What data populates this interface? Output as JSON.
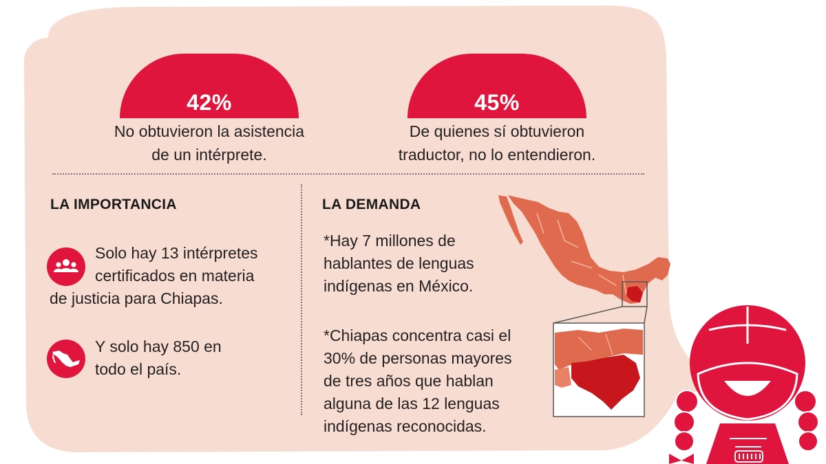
{
  "colors": {
    "background_bubble": "#f7dcd1",
    "accent_red": "#e0153d",
    "map_orange": "#e06a4e",
    "chiapas_red": "#c8161d",
    "text": "#231f20"
  },
  "stats": [
    {
      "value": "42%",
      "percent": 42,
      "caption_line1": "No obtuvieron la asistencia",
      "caption_line2": "de un intérprete."
    },
    {
      "value": "45%",
      "percent": 45,
      "caption_line1": "De quienes sí obtuvieron",
      "caption_line2": "traductor, no lo entendieron."
    }
  ],
  "importance": {
    "heading": "LA IMPORTANCIA",
    "items": [
      {
        "icon": "people-icon",
        "line1": "Solo hay 13 intérpretes",
        "line2": "certificados en materia",
        "line3": "de justicia para Chiapas."
      },
      {
        "icon": "mexico-map-icon",
        "line1": "Y solo hay 850 en",
        "line2": "todo el país."
      }
    ]
  },
  "demand": {
    "heading": "LA DEMANDA",
    "paragraph1": [
      "*Hay 7 millones de",
      "hablantes de lenguas",
      "indígenas en México."
    ],
    "paragraph2": [
      "*Chiapas concentra casi el",
      "30% de personas mayores",
      "de tres años que hablan",
      "alguna de las 12 lenguas",
      "indígenas reconocidas."
    ]
  },
  "map": {
    "icon": "mexico-map-icon",
    "highlight_icon": "chiapas-detail-icon"
  },
  "mascot": {
    "icon": "indigenous-girl-illustration"
  }
}
